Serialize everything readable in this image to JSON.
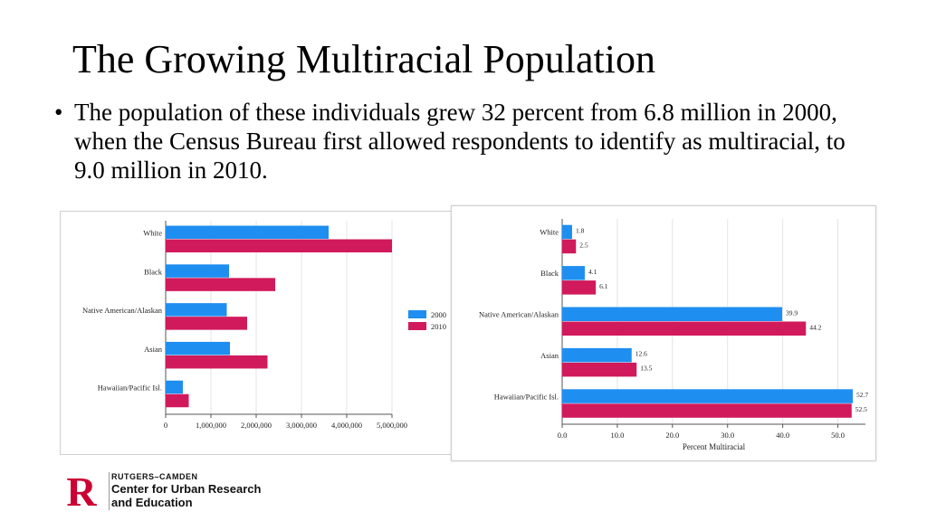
{
  "slide": {
    "title": "The Growing Multiracial Population",
    "bullet": "The population of these individuals grew 32 percent from 6.8 million in 2000, when the Census Bureau first allowed respondents to identify as multiracial, to 9.0 million in 2010."
  },
  "logo": {
    "mark": "R",
    "line1": "RUTGERS–CAMDEN",
    "line2": "Center for Urban Research",
    "line3": "and Education"
  },
  "colors": {
    "s2000": "#1f8ef1",
    "s2010": "#d11a5b",
    "grid": "#e4e4e4",
    "axis": "#555555",
    "logo_red": "#cc0033"
  },
  "chart_data": [
    {
      "type": "bar",
      "orientation": "horizontal",
      "title": "",
      "categories": [
        "White",
        "Black",
        "Native American/Alaskan",
        "Asian",
        "Hawaiian/Pacific Isl."
      ],
      "series": [
        {
          "name": "2000",
          "values": [
            3600000,
            1400000,
            1350000,
            1420000,
            380000
          ]
        },
        {
          "name": "2010",
          "values": [
            5000000,
            2420000,
            1800000,
            2250000,
            510000
          ]
        }
      ],
      "xlim": [
        0,
        5000000
      ],
      "xticks": [
        0,
        1000000,
        2000000,
        3000000,
        4000000,
        5000000
      ],
      "xtick_labels": [
        "0",
        "1,000,000",
        "2,000,000",
        "3,000,000",
        "4,000,000",
        "5,000,000"
      ],
      "xlabel": "",
      "ylabel": "",
      "legend": {
        "position": "right",
        "labels": [
          "2000",
          "2010"
        ]
      },
      "grid": true
    },
    {
      "type": "bar",
      "orientation": "horizontal",
      "title": "",
      "categories": [
        "White",
        "Black",
        "Native American/Alaskan",
        "Asian",
        "Hawaiian/Pacific Isl."
      ],
      "series": [
        {
          "name": "2000",
          "values": [
            1.8,
            4.1,
            39.9,
            12.6,
            52.7
          ],
          "labels": [
            "1.8",
            "4.1",
            "39.9",
            "12.6",
            "52.7"
          ]
        },
        {
          "name": "2010",
          "values": [
            2.5,
            6.1,
            44.2,
            13.5,
            52.5
          ],
          "labels": [
            "2.5",
            "6.1",
            "44.2",
            "13.5",
            "52.5"
          ]
        }
      ],
      "xlim": [
        0,
        55
      ],
      "xticks": [
        0,
        10,
        20,
        30,
        40,
        50
      ],
      "xtick_labels": [
        "0.0",
        "10.0",
        "20.0",
        "30.0",
        "40.0",
        "50.0"
      ],
      "xlabel": "Percent Multiracial",
      "ylabel": "",
      "grid": true
    }
  ]
}
